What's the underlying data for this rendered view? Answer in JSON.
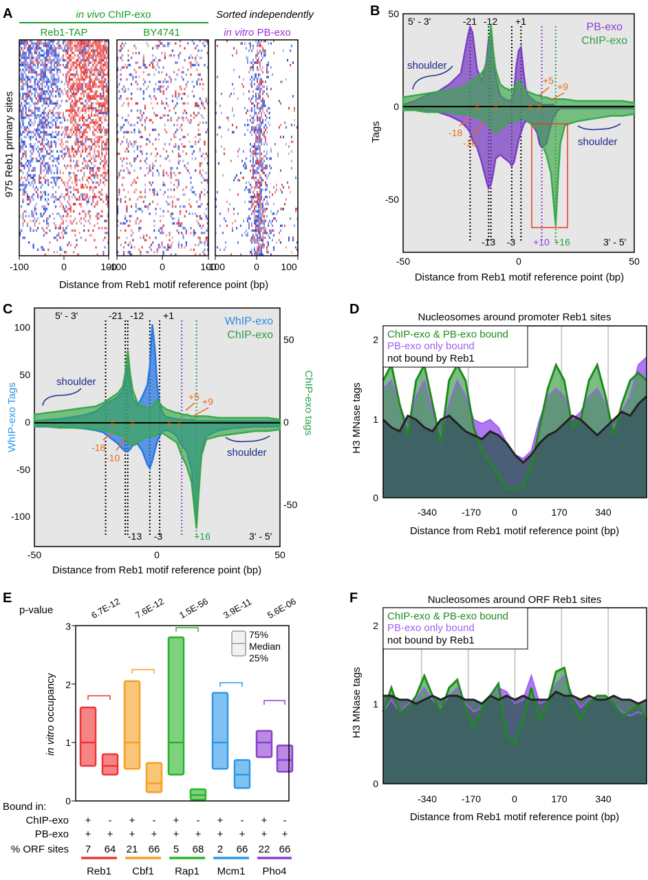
{
  "panels": {
    "A": {
      "letter": "A",
      "header_green_italic": "in vivo",
      "header_green": "ChIP-exo",
      "header_right": "Sorted independently",
      "sub_labels": [
        "Reb1-TAP",
        "BY4741"
      ],
      "sub_right_italic": "in vitro",
      "sub_right": "PB-exo",
      "ylabel": "975 Reb1 primary sites",
      "xticks": [
        "-100",
        "0",
        "100",
        "-100",
        "0",
        "100",
        "-100",
        "0",
        "100"
      ],
      "xlabel": "Distance from Reb1 motif reference point (bp)"
    },
    "B": {
      "letter": "B",
      "corner_tl": "5' - 3'",
      "corner_br": "3' - 5'",
      "legend": [
        "PB-exo",
        "ChIP-exo"
      ],
      "ylabel": "Tags",
      "yticks": [
        "50",
        "0",
        "-50"
      ],
      "xticks": [
        "-50",
        "0",
        "50"
      ],
      "xlabel": "Distance from Reb1 motif reference point (bp)",
      "top_marks": [
        "-21",
        "-12",
        "+1"
      ],
      "bottom_marks_black": [
        "-13",
        "-3"
      ],
      "bottom_mark_purple": "+10",
      "bottom_mark_green": "+16",
      "orange_labels": [
        "+5",
        "+9",
        "-18",
        "-10"
      ],
      "shoulder": "shoulder"
    },
    "C": {
      "letter": "C",
      "corner_tl": "5' - 3'",
      "corner_br": "3' - 5'",
      "legend": [
        "WhIP-exo",
        "ChIP-exo"
      ],
      "ylabel_left": "WhIP-exo Tags",
      "ylabel_right": "ChIP-exo tags",
      "yticks_left": [
        "100",
        "50",
        "0",
        "-50",
        "-100"
      ],
      "yticks_right": [
        "50",
        "0",
        "-50"
      ],
      "xticks": [
        "-50",
        "0",
        "50"
      ],
      "xlabel": "Distance from Reb1 motif reference point (bp)",
      "top_marks": [
        "-21",
        "-12",
        "+1"
      ],
      "bottom_marks_black": [
        "-13",
        "-3"
      ],
      "bottom_mark_green": "+16",
      "orange_labels": [
        "+5",
        "+9",
        "-18",
        "-10"
      ],
      "shoulder": "shoulder"
    },
    "D": {
      "letter": "D",
      "title": "Nucleosomes around promoter Reb1 sites",
      "legend": [
        "ChIP-exo & PB-exo bound",
        "PB-exo only bound",
        "not bound by Reb1"
      ],
      "ylabel": "H3 MNase tags",
      "yticks": [
        "2",
        "1",
        "0"
      ],
      "xticks": [
        "-340",
        "-170",
        "0",
        "170",
        "340"
      ],
      "xlabel": "Distance from Reb1 motif reference point (bp)"
    },
    "E": {
      "letter": "E",
      "pvalue_label": "p-value",
      "pvalues": [
        "6.7E-12",
        "7.6E-12",
        "1.5E-56",
        "3.9E-11",
        "5.6E-06"
      ],
      "ylabel_italic": "in vitro",
      "ylabel": "occupancy",
      "yticks": [
        "3",
        "2",
        "1",
        "0"
      ],
      "legend": [
        "75%",
        "Median",
        "25%"
      ],
      "bound_in": "Bound in:",
      "row_labels": [
        "ChIP-exo",
        "PB-exo",
        "% ORF sites"
      ],
      "chip_signs": [
        "+",
        "-",
        "+",
        "-",
        "+",
        "-",
        "+",
        "-",
        "+",
        "-"
      ],
      "pb_signs": [
        "+",
        "+",
        "+",
        "+",
        "+",
        "+",
        "+",
        "+",
        "+",
        "+"
      ],
      "orf_pct": [
        "7",
        "64",
        "21",
        "66",
        "5",
        "68",
        "2",
        "66",
        "22",
        "66"
      ],
      "factors": [
        "Reb1",
        "Cbf1",
        "Rap1",
        "Mcm1",
        "Pho4"
      ]
    },
    "F": {
      "letter": "F",
      "title": "Nucleosomes around ORF Reb1 sites",
      "legend": [
        "ChIP-exo & PB-exo bound",
        "PB-exo only bound",
        "not bound by Reb1"
      ],
      "ylabel": "H3 MNase tags",
      "yticks": [
        "2",
        "1",
        "0"
      ],
      "xticks": [
        "-340",
        "-170",
        "0",
        "170",
        "340"
      ],
      "xlabel": "Distance from Reb1 motif reference point (bp)"
    }
  },
  "chart_data": [
    {
      "panel": "A",
      "type": "heatmap",
      "title": "",
      "subplots": [
        "Reb1-TAP",
        "BY4741",
        "in vitro PB-exo"
      ],
      "x_range": [
        -100,
        100
      ],
      "rows": 975,
      "colors": {
        "sense": "#e02020",
        "antisense": "#2040d0"
      }
    },
    {
      "panel": "B",
      "type": "area",
      "x": [
        -50,
        -45,
        -40,
        -35,
        -30,
        -25,
        -22,
        -21,
        -20,
        -18,
        -16,
        -14,
        -13,
        -12,
        -11,
        -10,
        -8,
        -6,
        -4,
        -3,
        -2,
        -1,
        0,
        1,
        2,
        3,
        4,
        6,
        8,
        9,
        10,
        12,
        14,
        15,
        16,
        17,
        18,
        20,
        25,
        30,
        35,
        40,
        45,
        50
      ],
      "series": [
        {
          "name": "PB-exo",
          "color": "#7b3fc4",
          "top": [
            1,
            3,
            6,
            8,
            12,
            18,
            38,
            43,
            40,
            20,
            14,
            24,
            36,
            40,
            30,
            16,
            6,
            4,
            3,
            4,
            8,
            22,
            30,
            32,
            20,
            10,
            6,
            4,
            2,
            2,
            1,
            1,
            1,
            1,
            0,
            0,
            0,
            0,
            0,
            0,
            0,
            0,
            0,
            0
          ],
          "bottom": [
            -1,
            -1,
            -2,
            -3,
            -5,
            -8,
            -12,
            -14,
            -18,
            -22,
            -30,
            -40,
            -44,
            -42,
            -36,
            -28,
            -26,
            -28,
            -30,
            -32,
            -30,
            -24,
            -18,
            -14,
            -10,
            -8,
            -8,
            -10,
            -14,
            -20,
            -22,
            -20,
            -10,
            -6,
            -4,
            -2,
            -1,
            -1,
            -1,
            -1,
            -1,
            -1,
            -1,
            -1
          ]
        },
        {
          "name": "ChIP-exo",
          "color": "#3aa84a",
          "top": [
            5,
            6,
            7,
            8,
            9,
            10,
            12,
            13,
            14,
            16,
            18,
            22,
            30,
            44,
            30,
            20,
            12,
            10,
            9,
            9,
            10,
            12,
            14,
            12,
            10,
            9,
            8,
            7,
            6,
            6,
            5,
            5,
            4,
            4,
            4,
            4,
            4,
            4,
            3,
            3,
            3,
            3,
            3,
            2
          ],
          "bottom": [
            -2,
            -2,
            -3,
            -3,
            -3,
            -4,
            -4,
            -5,
            -5,
            -6,
            -7,
            -8,
            -10,
            -12,
            -12,
            -14,
            -12,
            -10,
            -8,
            -8,
            -8,
            -8,
            -7,
            -6,
            -6,
            -7,
            -8,
            -10,
            -12,
            -16,
            -20,
            -26,
            -36,
            -50,
            -64,
            -40,
            -20,
            -10,
            -8,
            -7,
            -6,
            -5,
            -5,
            -4
          ]
        }
      ],
      "xlim": [
        -50,
        50
      ],
      "ylim": [
        -70,
        50
      ]
    },
    {
      "panel": "C",
      "type": "area",
      "x": [
        -50,
        -45,
        -40,
        -35,
        -30,
        -25,
        -22,
        -21,
        -20,
        -18,
        -16,
        -14,
        -13,
        -12,
        -11,
        -10,
        -8,
        -6,
        -4,
        -3,
        -2,
        -1,
        0,
        1,
        2,
        3,
        4,
        6,
        8,
        9,
        10,
        12,
        14,
        15,
        16,
        17,
        18,
        20,
        25,
        30,
        35,
        40,
        45,
        50
      ],
      "series": [
        {
          "name": "WhIP-exo",
          "color": "#2a78e0",
          "axis": "left",
          "top": [
            2,
            3,
            4,
            6,
            8,
            12,
            18,
            20,
            22,
            24,
            28,
            34,
            44,
            60,
            40,
            26,
            18,
            28,
            40,
            60,
            104,
            80,
            40,
            20,
            12,
            8,
            6,
            5,
            4,
            4,
            3,
            3,
            3,
            3,
            2,
            2,
            2,
            2,
            2,
            2,
            2,
            2,
            2,
            2
          ],
          "bottom": [
            -4,
            -4,
            -5,
            -5,
            -6,
            -8,
            -10,
            -12,
            -14,
            -18,
            -22,
            -28,
            -30,
            -30,
            -28,
            -24,
            -22,
            -30,
            -44,
            -48,
            -40,
            -30,
            -20,
            -14,
            -10,
            -8,
            -8,
            -10,
            -14,
            -20,
            -24,
            -30,
            -50,
            -80,
            -106,
            -70,
            -30,
            -14,
            -8,
            -6,
            -5,
            -4,
            -4,
            -4
          ]
        },
        {
          "name": "ChIP-exo",
          "color": "#3aa84a",
          "axis": "right",
          "top": [
            5,
            6,
            7,
            8,
            9,
            10,
            12,
            13,
            14,
            16,
            18,
            22,
            30,
            44,
            30,
            20,
            12,
            10,
            9,
            9,
            10,
            12,
            14,
            12,
            10,
            9,
            8,
            7,
            6,
            6,
            5,
            5,
            4,
            4,
            4,
            4,
            4,
            4,
            3,
            3,
            3,
            3,
            3,
            2
          ],
          "bottom": [
            -2,
            -2,
            -3,
            -3,
            -3,
            -4,
            -4,
            -5,
            -5,
            -6,
            -7,
            -8,
            -10,
            -12,
            -12,
            -14,
            -12,
            -10,
            -8,
            -8,
            -8,
            -8,
            -7,
            -6,
            -6,
            -7,
            -8,
            -10,
            -12,
            -16,
            -20,
            -26,
            -36,
            -50,
            -64,
            -40,
            -20,
            -10,
            -8,
            -7,
            -6,
            -5,
            -5,
            -4
          ]
        }
      ],
      "xlim": [
        -50,
        50
      ],
      "ylim_left": [
        -120,
        120
      ],
      "ylim_right": [
        -70,
        70
      ]
    },
    {
      "panel": "D",
      "type": "line",
      "x": [
        -480,
        -450,
        -420,
        -390,
        -360,
        -330,
        -300,
        -270,
        -240,
        -210,
        -180,
        -150,
        -120,
        -90,
        -60,
        -30,
        0,
        30,
        60,
        90,
        120,
        150,
        180,
        210,
        240,
        270,
        300,
        330,
        360,
        390,
        420,
        450,
        480
      ],
      "series": [
        {
          "name": "ChIP-exo & PB-exo bound",
          "color": "#1e8a1e",
          "values": [
            1.5,
            1.7,
            1.2,
            0.8,
            1.5,
            1.7,
            1.2,
            0.7,
            1.5,
            1.7,
            1.5,
            0.9,
            0.6,
            0.45,
            0.3,
            0.12,
            0.1,
            0.15,
            0.4,
            0.9,
            1.4,
            1.7,
            1.5,
            0.9,
            1.0,
            1.5,
            1.7,
            1.3,
            0.8,
            1.2,
            1.5,
            1.6,
            1.5
          ]
        },
        {
          "name": "PB-exo only bound",
          "color": "#a35ef0",
          "values": [
            1.4,
            1.5,
            1.2,
            0.9,
            1.3,
            1.5,
            1.1,
            0.8,
            1.2,
            1.5,
            1.3,
            1.0,
            0.95,
            1.0,
            0.9,
            0.7,
            0.55,
            0.5,
            0.6,
            1.0,
            1.3,
            1.4,
            1.3,
            1.0,
            1.1,
            1.3,
            1.4,
            1.2,
            0.9,
            1.1,
            1.3,
            1.7,
            1.8
          ]
        },
        {
          "name": "not bound by Reb1",
          "color": "#222222",
          "values": [
            1.0,
            0.9,
            0.85,
            1.05,
            1.0,
            0.9,
            0.85,
            1.0,
            1.05,
            0.95,
            0.85,
            0.8,
            0.75,
            0.85,
            0.8,
            0.7,
            0.55,
            0.45,
            0.55,
            0.7,
            0.8,
            0.85,
            0.95,
            1.05,
            1.0,
            0.9,
            0.8,
            0.9,
            1.0,
            1.1,
            1.05,
            1.2,
            1.3
          ]
        }
      ],
      "xlim": [
        -480,
        480
      ],
      "ylim": [
        0,
        2.2
      ]
    },
    {
      "panel": "E",
      "type": "bar",
      "title": "",
      "categories": [
        "Reb1 +",
        "Reb1 -",
        "Cbf1 +",
        "Cbf1 -",
        "Rap1 +",
        "Rap1 -",
        "Mcm1 +",
        "Mcm1 -",
        "Pho4 +",
        "Pho4 -"
      ],
      "q25": [
        0.6,
        0.45,
        0.55,
        0.15,
        0.45,
        0.02,
        0.55,
        0.22,
        0.75,
        0.5
      ],
      "median": [
        1.0,
        0.6,
        1.0,
        0.3,
        1.0,
        0.1,
        1.0,
        0.45,
        1.0,
        0.7
      ],
      "q75": [
        1.6,
        0.8,
        2.05,
        0.65,
        2.8,
        0.2,
        1.85,
        0.7,
        1.2,
        0.95
      ],
      "colors": [
        "#ee3434",
        "#ee3434",
        "#f5a020",
        "#f5a020",
        "#28b428",
        "#28b428",
        "#2b98e8",
        "#2b98e8",
        "#8a3ed0",
        "#8a3ed0"
      ],
      "ylim": [
        0,
        3
      ]
    },
    {
      "panel": "F",
      "type": "line",
      "x": [
        -480,
        -450,
        -420,
        -390,
        -360,
        -330,
        -300,
        -270,
        -240,
        -210,
        -180,
        -150,
        -120,
        -90,
        -60,
        -30,
        0,
        30,
        60,
        90,
        120,
        150,
        180,
        210,
        240,
        270,
        300,
        330,
        360,
        390,
        420,
        450,
        480
      ],
      "series": [
        {
          "name": "ChIP-exo & PB-exo bound",
          "color": "#1e8a1e",
          "values": [
            0.9,
            1.2,
            0.9,
            0.95,
            1.1,
            1.35,
            1.1,
            0.9,
            1.2,
            1.3,
            0.95,
            0.7,
            0.95,
            1.1,
            1.25,
            0.6,
            0.5,
            0.8,
            1.2,
            0.8,
            1.0,
            1.4,
            1.45,
            1.0,
            0.8,
            1.0,
            1.1,
            1.1,
            1.0,
            0.85,
            0.9,
            1.0,
            0.8
          ]
        },
        {
          "name": "PB-exo only bound",
          "color": "#a35ef0",
          "values": [
            0.9,
            1.05,
            0.9,
            1.0,
            1.05,
            1.2,
            1.05,
            0.95,
            1.1,
            1.2,
            1.0,
            0.9,
            0.95,
            1.1,
            1.2,
            1.15,
            1.0,
            1.05,
            1.35,
            1.0,
            1.05,
            1.25,
            1.35,
            1.1,
            0.95,
            1.05,
            1.1,
            1.1,
            1.0,
            0.9,
            0.85,
            0.9,
            0.85
          ]
        },
        {
          "name": "not bound by Reb1",
          "color": "#222222",
          "values": [
            1.1,
            1.1,
            1.05,
            1.05,
            1.0,
            1.05,
            1.1,
            1.05,
            1.1,
            1.1,
            1.05,
            1.05,
            1.0,
            1.1,
            1.05,
            1.1,
            1.05,
            1.1,
            1.05,
            1.05,
            1.05,
            1.15,
            1.1,
            1.1,
            1.05,
            1.1,
            1.05,
            1.05,
            1.1,
            1.05,
            1.05,
            1.0,
            1.05
          ]
        }
      ],
      "xlim": [
        -480,
        480
      ],
      "ylim": [
        0,
        2.2
      ]
    }
  ]
}
